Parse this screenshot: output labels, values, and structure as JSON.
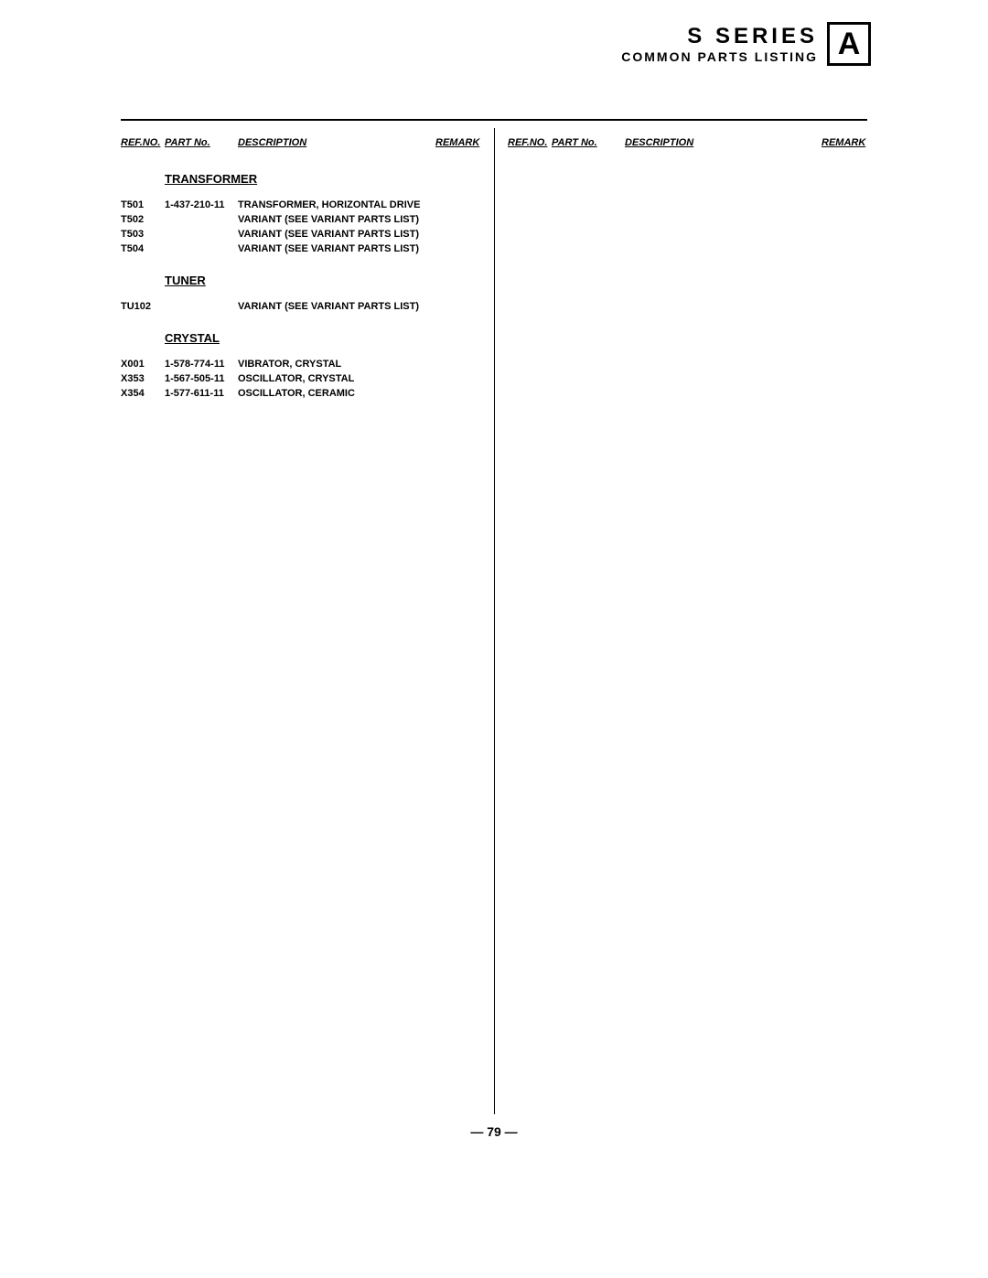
{
  "header": {
    "title": "S  SERIES",
    "subtitle": "COMMON PARTS LISTING",
    "box": "A"
  },
  "column_headers": {
    "ref": "REF.NO.",
    "part": "PART No.",
    "desc": "DESCRIPTION",
    "remark": "REMARK"
  },
  "sections": [
    {
      "title": "TRANSFORMER",
      "rows": [
        {
          "ref": "T501",
          "part": "1-437-210-11",
          "desc": "TRANSFORMER, HORIZONTAL DRIVE",
          "remark": ""
        },
        {
          "ref": "T502",
          "part": "",
          "desc": "VARIANT (SEE VARIANT PARTS LIST)",
          "remark": ""
        },
        {
          "ref": "T503",
          "part": "",
          "desc": "VARIANT (SEE VARIANT PARTS LIST)",
          "remark": ""
        },
        {
          "ref": "T504",
          "part": "",
          "desc": "VARIANT (SEE VARIANT PARTS LIST)",
          "remark": ""
        }
      ]
    },
    {
      "title": "TUNER",
      "rows": [
        {
          "ref": "TU102",
          "part": "",
          "desc": "VARIANT (SEE VARIANT PARTS LIST)",
          "remark": ""
        }
      ]
    },
    {
      "title": "CRYSTAL",
      "rows": [
        {
          "ref": "X001",
          "part": "1-578-774-11",
          "desc": "VIBRATOR, CRYSTAL",
          "remark": ""
        },
        {
          "ref": "X353",
          "part": "1-567-505-11",
          "desc": "OSCILLATOR, CRYSTAL",
          "remark": ""
        },
        {
          "ref": "X354",
          "part": "1-577-611-11",
          "desc": "OSCILLATOR, CERAMIC",
          "remark": ""
        }
      ]
    }
  ],
  "page_number": "— 79 —"
}
